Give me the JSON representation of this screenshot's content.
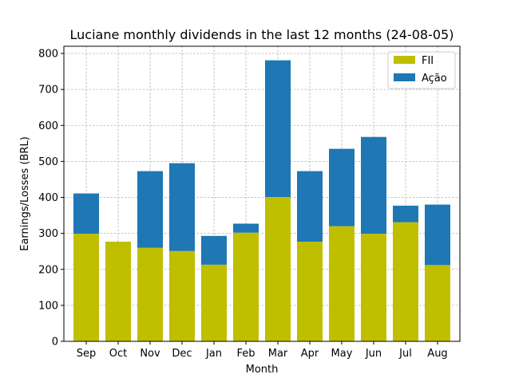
{
  "chart_data": {
    "type": "bar",
    "stacked": true,
    "title": "Luciane monthly dividends in the last 12 months (24-08-05)",
    "xlabel": "Month",
    "ylabel": "Earnings/Losses (BRL)",
    "ylim": [
      0,
      820
    ],
    "yticks": [
      0,
      100,
      200,
      300,
      400,
      500,
      600,
      700,
      800
    ],
    "grid": true,
    "legend_position": "top-right",
    "categories": [
      "Sep",
      "Oct",
      "Nov",
      "Dec",
      "Jan",
      "Feb",
      "Mar",
      "Apr",
      "May",
      "Jun",
      "Jul",
      "Aug"
    ],
    "series": [
      {
        "name": "FII",
        "color": "#bfbf00",
        "values": [
          299,
          277,
          260,
          251,
          213,
          302,
          401,
          277,
          320,
          299,
          331,
          212
        ]
      },
      {
        "name": "Ação",
        "color": "#1f77b4",
        "values": [
          112,
          0,
          213,
          244,
          80,
          25,
          380,
          196,
          215,
          269,
          46,
          168
        ]
      }
    ]
  }
}
